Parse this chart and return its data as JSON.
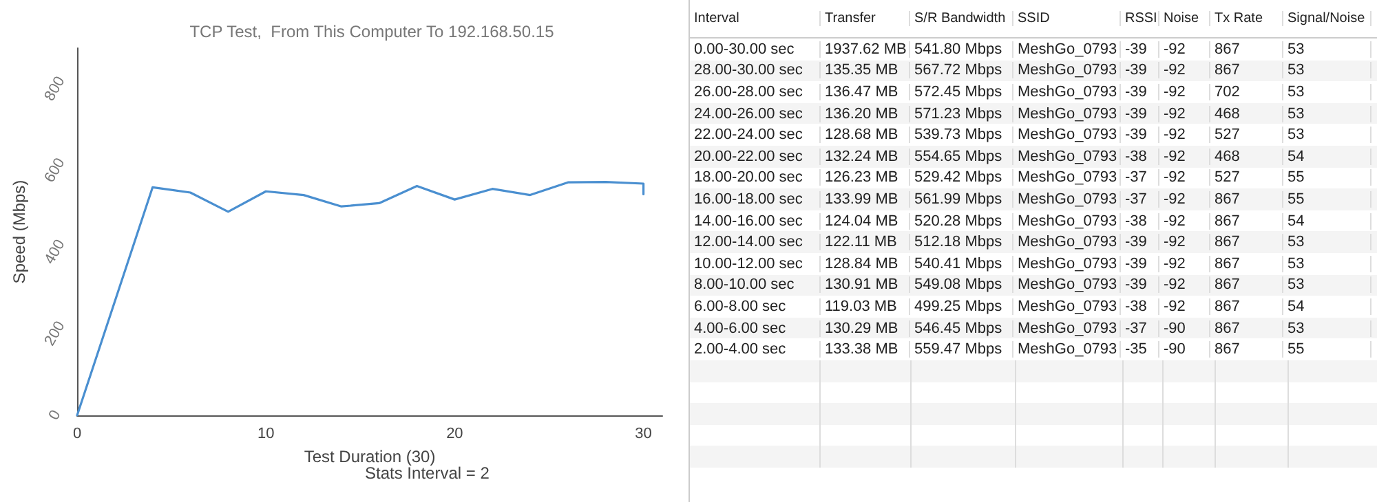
{
  "chart_data": [
    {
      "type": "line",
      "title": "TCP Test,  From This Computer To 192.168.50.15",
      "xlabel": "Test Duration (30)",
      "ylabel": "Speed (Mbps)",
      "annotations": [
        "Stats Interval = 2"
      ],
      "x": [
        0,
        4,
        6,
        8,
        10,
        12,
        14,
        16,
        18,
        20,
        22,
        24,
        26,
        28,
        30,
        30
      ],
      "series": [
        {
          "color": "#4a8fd0",
          "values": [
            0,
            559,
            546,
            499,
            549,
            540,
            512,
            520,
            562,
            529,
            555,
            540,
            571,
            572,
            568,
            542
          ]
        }
      ],
      "xlim": [
        0,
        31
      ],
      "xticks": [
        0,
        10,
        20,
        30
      ],
      "ylim": [
        0,
        900
      ],
      "yticks": [
        0,
        200,
        400,
        600,
        800
      ],
      "grid": false,
      "marker": "none",
      "line_style": "solid"
    },
    {
      "type": "other",
      "categories": [
        "Interval",
        "Transfer",
        "S/R Bandwidth",
        "SSID",
        "RSSI",
        "Noise",
        "Tx Rate",
        "Signal/Noise"
      ],
      "cell_labels": [
        [
          "0.00-30.00 sec",
          "1937.62 MB",
          "541.80 Mbps",
          "MeshGo_0793",
          "-39",
          "-92",
          "867",
          "53"
        ],
        [
          "28.00-30.00 sec",
          "135.35 MB",
          "567.72 Mbps",
          "MeshGo_0793",
          "-39",
          "-92",
          "867",
          "53"
        ],
        [
          "26.00-28.00 sec",
          "136.47 MB",
          "572.45 Mbps",
          "MeshGo_0793",
          "-39",
          "-92",
          "702",
          "53"
        ],
        [
          "24.00-26.00 sec",
          "136.20 MB",
          "571.23 Mbps",
          "MeshGo_0793",
          "-39",
          "-92",
          "468",
          "53"
        ],
        [
          "22.00-24.00 sec",
          "128.68 MB",
          "539.73 Mbps",
          "MeshGo_0793",
          "-39",
          "-92",
          "527",
          "53"
        ],
        [
          "20.00-22.00 sec",
          "132.24 MB",
          "554.65 Mbps",
          "MeshGo_0793",
          "-38",
          "-92",
          "468",
          "54"
        ],
        [
          "18.00-20.00 sec",
          "126.23 MB",
          "529.42 Mbps",
          "MeshGo_0793",
          "-37",
          "-92",
          "527",
          "55"
        ],
        [
          "16.00-18.00 sec",
          "133.99 MB",
          "561.99 Mbps",
          "MeshGo_0793",
          "-37",
          "-92",
          "867",
          "55"
        ],
        [
          "14.00-16.00 sec",
          "124.04 MB",
          "520.28 Mbps",
          "MeshGo_0793",
          "-38",
          "-92",
          "867",
          "54"
        ],
        [
          "12.00-14.00 sec",
          "122.11 MB",
          "512.18 Mbps",
          "MeshGo_0793",
          "-39",
          "-92",
          "867",
          "53"
        ],
        [
          "10.00-12.00 sec",
          "128.84 MB",
          "540.41 Mbps",
          "MeshGo_0793",
          "-39",
          "-92",
          "867",
          "53"
        ],
        [
          "8.00-10.00 sec",
          "130.91 MB",
          "549.08 Mbps",
          "MeshGo_0793",
          "-39",
          "-92",
          "867",
          "53"
        ],
        [
          "6.00-8.00 sec",
          "119.03 MB",
          "499.25 Mbps",
          "MeshGo_0793",
          "-38",
          "-92",
          "867",
          "54"
        ],
        [
          "4.00-6.00 sec",
          "130.29 MB",
          "546.45 Mbps",
          "MeshGo_0793",
          "-37",
          "-90",
          "867",
          "53"
        ],
        [
          "2.00-4.00 sec",
          "133.38 MB",
          "559.47 Mbps",
          "MeshGo_0793",
          "-35",
          "-90",
          "867",
          "55"
        ]
      ]
    }
  ]
}
